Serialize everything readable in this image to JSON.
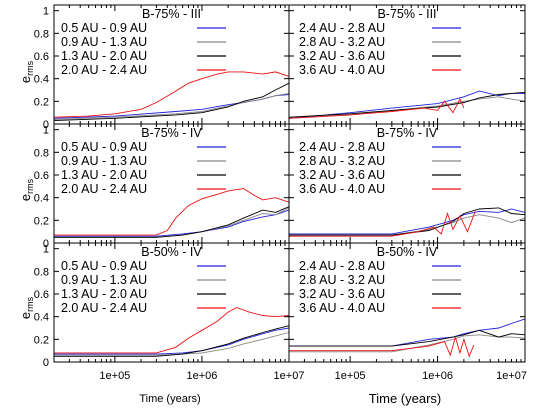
{
  "figure": {
    "ylabel": "e",
    "ylabel_sub": "rms",
    "xlabel_left": "Time (years)",
    "xlabel_right": "Time (years)"
  },
  "chart_data": [
    {
      "type": "line",
      "title": "B-75% - III",
      "xscale": "log",
      "xlim": [
        20000,
        10000000
      ],
      "ylim": [
        0,
        1.05
      ],
      "yticks": [
        "0",
        "0.2",
        "0.4",
        "0.6",
        "0.8",
        "1"
      ],
      "series": [
        {
          "name": "0.5 AU - 0.9 AU",
          "color": "#2222dd",
          "x": [
            20000,
            100000,
            500000,
            1000000,
            2000000,
            3000000,
            5000000,
            7000000,
            10000000
          ],
          "y": [
            0.05,
            0.07,
            0.11,
            0.13,
            0.17,
            0.19,
            0.22,
            0.25,
            0.26
          ]
        },
        {
          "name": "0.9 AU - 1.3 AU",
          "color": "#888888",
          "x": [
            20000,
            100000,
            500000,
            1000000,
            2000000,
            3000000,
            5000000,
            7000000,
            10000000
          ],
          "y": [
            0.04,
            0.06,
            0.09,
            0.11,
            0.16,
            0.19,
            0.22,
            0.25,
            0.27
          ]
        },
        {
          "name": "1.3 AU - 2.0 AU",
          "color": "#000000",
          "x": [
            20000,
            100000,
            500000,
            1000000,
            2000000,
            3000000,
            5000000,
            7000000,
            10000000
          ],
          "y": [
            0.03,
            0.05,
            0.08,
            0.1,
            0.15,
            0.2,
            0.24,
            0.3,
            0.36
          ]
        },
        {
          "name": "2.0 AU - 2.4 AU",
          "color": "#ee1111",
          "x": [
            20000,
            50000,
            100000,
            200000,
            300000,
            500000,
            700000,
            1000000,
            1500000,
            2000000,
            3000000,
            5000000,
            7000000,
            10000000
          ],
          "y": [
            0.06,
            0.07,
            0.09,
            0.13,
            0.19,
            0.29,
            0.36,
            0.4,
            0.44,
            0.46,
            0.46,
            0.44,
            0.46,
            0.42
          ]
        }
      ]
    },
    {
      "type": "line",
      "title": "B-75% - III",
      "xscale": "log",
      "xlim": [
        20000,
        10000000
      ],
      "ylim": [
        0,
        1.05
      ],
      "series": [
        {
          "name": "2.4 AU - 2.8 AU",
          "color": "#2222dd",
          "x": [
            20000,
            100000,
            300000,
            1000000,
            2000000,
            3000000,
            5000000,
            7000000,
            10000000
          ],
          "y": [
            0.05,
            0.1,
            0.14,
            0.18,
            0.24,
            0.29,
            0.25,
            0.27,
            0.27
          ]
        },
        {
          "name": "2.8 AU - 3.2 AU",
          "color": "#888888",
          "x": [
            20000,
            100000,
            300000,
            1000000,
            2000000,
            3000000,
            5000000,
            7000000,
            10000000
          ],
          "y": [
            0.05,
            0.08,
            0.12,
            0.16,
            0.2,
            0.22,
            0.24,
            0.22,
            0.2
          ]
        },
        {
          "name": "3.2 AU - 3.6 AU",
          "color": "#000000",
          "x": [
            20000,
            100000,
            300000,
            1000000,
            2000000,
            3000000,
            5000000,
            7000000,
            10000000
          ],
          "y": [
            0.06,
            0.09,
            0.12,
            0.15,
            0.19,
            0.23,
            0.26,
            0.27,
            0.28
          ]
        },
        {
          "name": "3.6 AU - 4.0 AU",
          "color": "#ee1111",
          "x": [
            20000,
            100000,
            300000,
            700000,
            1000000,
            1200000,
            1500000,
            1800000,
            2000000
          ],
          "y": [
            0.05,
            0.08,
            0.11,
            0.14,
            0.12,
            0.2,
            0.1,
            0.22,
            0.14
          ]
        }
      ]
    },
    {
      "type": "line",
      "title": "B-75% - IV",
      "xscale": "log",
      "xlim": [
        20000,
        10000000
      ],
      "ylim": [
        0,
        1.05
      ],
      "yticks": [
        "0",
        "0.2",
        "0.4",
        "0.6",
        "0.8",
        "1"
      ],
      "series": [
        {
          "name": "0.5 AU - 0.9 AU",
          "color": "#2222dd",
          "x": [
            20000,
            300000,
            600000,
            1000000,
            2000000,
            3000000,
            5000000,
            7000000,
            10000000
          ],
          "y": [
            0.06,
            0.06,
            0.08,
            0.1,
            0.14,
            0.19,
            0.23,
            0.25,
            0.29
          ]
        },
        {
          "name": "0.9 AU - 1.3 AU",
          "color": "#888888",
          "x": [
            20000,
            300000,
            600000,
            1000000,
            2000000,
            3000000,
            5000000,
            7000000,
            10000000
          ],
          "y": [
            0.05,
            0.05,
            0.07,
            0.1,
            0.15,
            0.2,
            0.26,
            0.25,
            0.31
          ]
        },
        {
          "name": "1.3 AU - 2.0 AU",
          "color": "#000000",
          "x": [
            20000,
            300000,
            600000,
            1000000,
            2000000,
            3000000,
            5000000,
            7000000,
            10000000
          ],
          "y": [
            0.05,
            0.05,
            0.07,
            0.1,
            0.16,
            0.22,
            0.29,
            0.27,
            0.32
          ]
        },
        {
          "name": "2.0 AU - 2.4 AU",
          "color": "#ee1111",
          "x": [
            20000,
            300000,
            400000,
            500000,
            700000,
            1000000,
            1500000,
            2000000,
            3000000,
            4000000,
            5000000,
            7000000,
            10000000
          ],
          "y": [
            0.07,
            0.07,
            0.11,
            0.22,
            0.33,
            0.39,
            0.43,
            0.46,
            0.48,
            0.42,
            0.38,
            0.4,
            0.36
          ]
        }
      ]
    },
    {
      "type": "line",
      "title": "B-75% - IV",
      "xscale": "log",
      "xlim": [
        20000,
        10000000
      ],
      "ylim": [
        0,
        1.05
      ],
      "series": [
        {
          "name": "2.4 AU - 2.8 AU",
          "color": "#2222dd",
          "x": [
            20000,
            300000,
            800000,
            1500000,
            2000000,
            3000000,
            5000000,
            7000000,
            10000000
          ],
          "y": [
            0.08,
            0.08,
            0.14,
            0.2,
            0.25,
            0.28,
            0.27,
            0.3,
            0.27
          ]
        },
        {
          "name": "2.8 AU - 3.2 AU",
          "color": "#888888",
          "x": [
            20000,
            300000,
            800000,
            1500000,
            2000000,
            3000000,
            5000000,
            7000000,
            10000000
          ],
          "y": [
            0.07,
            0.07,
            0.12,
            0.18,
            0.22,
            0.25,
            0.22,
            0.18,
            0.22
          ]
        },
        {
          "name": "3.2 AU - 3.6 AU",
          "color": "#000000",
          "x": [
            20000,
            300000,
            800000,
            1500000,
            2000000,
            3000000,
            5000000,
            7000000,
            10000000
          ],
          "y": [
            0.07,
            0.07,
            0.11,
            0.19,
            0.26,
            0.3,
            0.31,
            0.26,
            0.25
          ]
        },
        {
          "name": "3.6 AU - 4.0 AU",
          "color": "#ee1111",
          "x": [
            20000,
            300000,
            600000,
            900000,
            1100000,
            1300000,
            1500000,
            1800000,
            2200000,
            2700000
          ],
          "y": [
            0.06,
            0.06,
            0.1,
            0.14,
            0.08,
            0.26,
            0.12,
            0.24,
            0.1,
            0.28
          ]
        }
      ]
    },
    {
      "type": "line",
      "title": "B-50% - IV",
      "xscale": "log",
      "xlim": [
        20000,
        10000000
      ],
      "ylim": [
        0,
        1.05
      ],
      "yticks": [
        "0",
        "0.2",
        "0.4",
        "0.6",
        "0.8",
        "1"
      ],
      "series": [
        {
          "name": "0.5 AU - 0.9 AU",
          "color": "#2222dd",
          "x": [
            20000,
            300000,
            600000,
            1000000,
            2000000,
            3000000,
            5000000,
            7000000,
            10000000
          ],
          "y": [
            0.07,
            0.07,
            0.08,
            0.1,
            0.15,
            0.2,
            0.25,
            0.28,
            0.3
          ]
        },
        {
          "name": "0.9 AU - 1.3 AU",
          "color": "#888888",
          "x": [
            20000,
            300000,
            600000,
            1000000,
            2000000,
            3000000,
            5000000,
            7000000,
            10000000
          ],
          "y": [
            0.06,
            0.06,
            0.07,
            0.08,
            0.12,
            0.16,
            0.2,
            0.23,
            0.26
          ]
        },
        {
          "name": "1.3 AU - 2.0 AU",
          "color": "#000000",
          "x": [
            20000,
            300000,
            600000,
            1000000,
            2000000,
            3000000,
            5000000,
            7000000,
            10000000
          ],
          "y": [
            0.05,
            0.05,
            0.07,
            0.1,
            0.16,
            0.21,
            0.26,
            0.29,
            0.32
          ]
        },
        {
          "name": "2.0 AU - 2.4 AU",
          "color": "#ee1111",
          "x": [
            20000,
            300000,
            500000,
            700000,
            1000000,
            1500000,
            2000000,
            2500000,
            3500000,
            5000000,
            7000000,
            10000000
          ],
          "y": [
            0.08,
            0.08,
            0.13,
            0.21,
            0.28,
            0.36,
            0.44,
            0.48,
            0.44,
            0.41,
            0.4,
            0.41
          ]
        }
      ]
    },
    {
      "type": "line",
      "title": "B-50% - IV",
      "xscale": "log",
      "xlim": [
        20000,
        10000000
      ],
      "ylim": [
        0,
        1.05
      ],
      "series": [
        {
          "name": "2.4 AU - 2.8 AU",
          "color": "#2222dd",
          "x": [
            20000,
            300000,
            800000,
            1500000,
            2000000,
            3000000,
            5000000,
            7000000,
            10000000
          ],
          "y": [
            0.14,
            0.14,
            0.2,
            0.22,
            0.25,
            0.28,
            0.3,
            0.34,
            0.38
          ]
        },
        {
          "name": "2.8 AU - 3.2 AU",
          "color": "#888888",
          "x": [
            20000,
            300000,
            800000,
            1500000,
            2000000,
            3000000,
            5000000,
            7000000,
            10000000
          ],
          "y": [
            0.09,
            0.09,
            0.15,
            0.2,
            0.23,
            0.24,
            0.22,
            0.22,
            0.21
          ]
        },
        {
          "name": "3.2 AU - 3.6 AU",
          "color": "#000000",
          "x": [
            20000,
            300000,
            800000,
            1500000,
            2000000,
            3000000,
            5000000,
            7000000,
            10000000
          ],
          "y": [
            0.14,
            0.14,
            0.18,
            0.22,
            0.24,
            0.28,
            0.22,
            0.25,
            0.24
          ]
        },
        {
          "name": "3.6 AU - 4.0 AU",
          "color": "#ee1111",
          "x": [
            20000,
            300000,
            800000,
            1200000,
            1400000,
            1600000,
            1800000,
            2000000,
            2300000,
            2600000
          ],
          "y": [
            0.1,
            0.1,
            0.14,
            0.18,
            0.06,
            0.22,
            0.08,
            0.2,
            0.05,
            0.15
          ]
        }
      ]
    }
  ],
  "x_ticks": [
    {
      "value": 100000,
      "label": "1e+05"
    },
    {
      "value": 1000000,
      "label": "1e+06"
    },
    {
      "value": 10000000,
      "label": "1e+07"
    }
  ]
}
